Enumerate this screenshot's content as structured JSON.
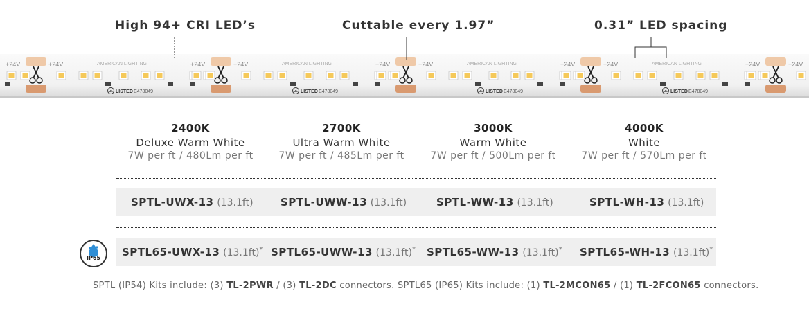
{
  "callouts": {
    "cri": "High 94+ CRI LED’s",
    "cut": "Cuttable every 1.97”",
    "spacing": "0.31” LED spacing"
  },
  "strip": {
    "voltage": "+24V",
    "brand": "AMERICAN LIGHTING",
    "listed": "LISTED",
    "cert_no": "E478049",
    "ul": "UL",
    "icons": [
      "scissors-icon",
      "ul-logo"
    ]
  },
  "temps": [
    {
      "kelvin": "2400K",
      "name": "Deluxe Warm White",
      "specs": "7W per ft / 480Lm per ft"
    },
    {
      "kelvin": "2700K",
      "name": "Ultra Warm White",
      "specs": "7W per ft / 485Lm per ft"
    },
    {
      "kelvin": "3000K",
      "name": "Warm White",
      "specs": "7W per ft / 500Lm per ft"
    },
    {
      "kelvin": "4000K",
      "name": "White",
      "specs": "7W per ft / 570Lm per ft"
    }
  ],
  "sptl_row": [
    {
      "code": "SPTL-UWX-13",
      "length": "(13.1ft)"
    },
    {
      "code": "SPTL-UWW-13",
      "length": "(13.1ft)"
    },
    {
      "code": "SPTL-WW-13",
      "length": "(13.1ft)"
    },
    {
      "code": "SPTL-WH-13",
      "length": "(13.1ft)"
    }
  ],
  "sptl65_row": [
    {
      "code": "SPTL65-UWX-13",
      "length": "(13.1ft)",
      "mark": "*"
    },
    {
      "code": "SPTL65-UWW-13",
      "length": "(13.1ft)",
      "mark": "*"
    },
    {
      "code": "SPTL65-WW-13",
      "length": "(13.1ft)",
      "mark": "*"
    },
    {
      "code": "SPTL65-WH-13",
      "length": "(13.1ft)",
      "mark": "*"
    }
  ],
  "ip_badge": {
    "label": "IP65",
    "icon": "water-drop-icon"
  },
  "footnote": {
    "t1": "SPTL (IP54) Kits include: (3) ",
    "b1": "TL-2PWR",
    "t2": " / (3) ",
    "b2": "TL-2DC",
    "t3": " connectors. SPTL65 (IP65) Kits include: (1) ",
    "b3": "TL-2MCON65",
    "t4": " / (1) ",
    "b4": "TL-2FCON65",
    "t5": " connectors."
  },
  "colors": {
    "led": "#f5c95a",
    "pad": "#d99a70",
    "strip_bg": "#f3f3f3",
    "row_bg": "#efefef"
  }
}
